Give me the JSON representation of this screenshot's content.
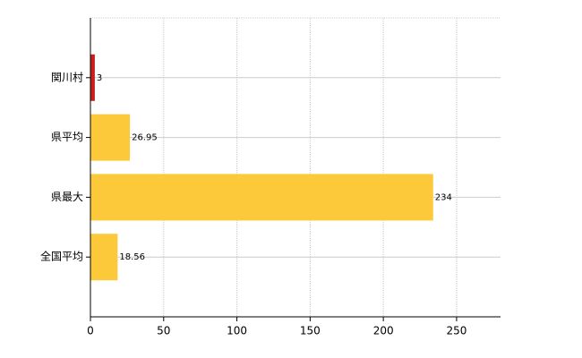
{
  "chart_data": {
    "type": "hbar",
    "categories": [
      "関川村",
      "県平均",
      "県最大",
      "全国平均"
    ],
    "values": [
      3,
      26.95,
      234,
      18.56
    ],
    "colors": [
      "#c8201e",
      "#fcc93a",
      "#fcc93a",
      "#fcc93a"
    ],
    "xlim": [
      0,
      280
    ],
    "xticks": [
      0,
      50,
      100,
      150,
      200,
      250
    ],
    "grid": true
  }
}
